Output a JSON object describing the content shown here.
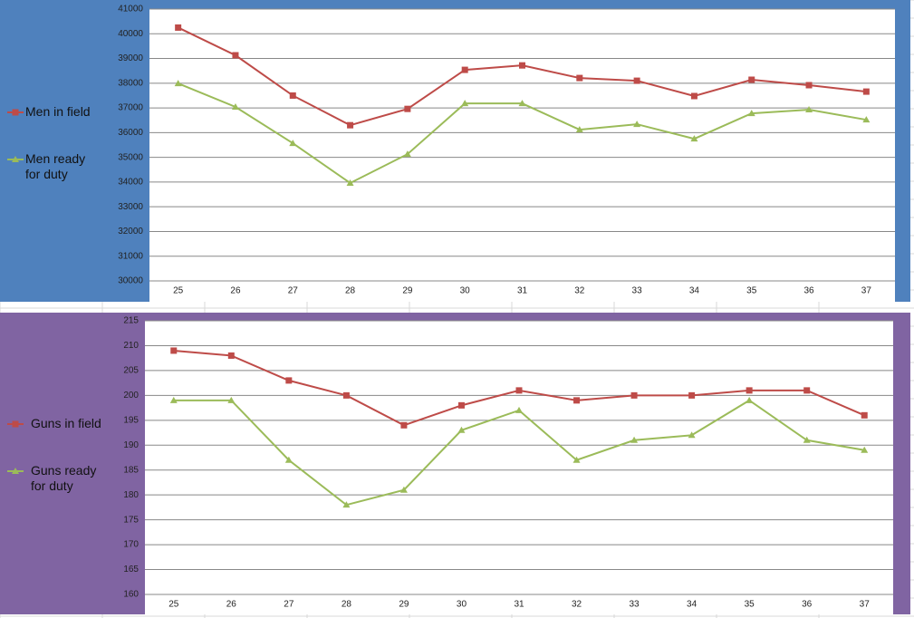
{
  "chart_data": [
    {
      "type": "line",
      "categories": [
        "25",
        "26",
        "27",
        "28",
        "29",
        "30",
        "31",
        "32",
        "33",
        "34",
        "35",
        "36",
        "37"
      ],
      "series": [
        {
          "name": "Men in field",
          "color": "#be4b48",
          "marker": "square",
          "values": [
            40250,
            39130,
            37500,
            36300,
            36960,
            38540,
            38720,
            38210,
            38100,
            37480,
            38140,
            37920,
            37660
          ]
        },
        {
          "name": "Men ready for duty",
          "color": "#9bbb59",
          "marker": "triangle",
          "values": [
            37990,
            37040,
            35570,
            33960,
            35130,
            37180,
            37180,
            36120,
            36340,
            35750,
            36780,
            36930,
            36520
          ]
        }
      ],
      "ylim": [
        30000,
        41000
      ],
      "yticks": [
        30000,
        31000,
        32000,
        33000,
        34000,
        35000,
        36000,
        37000,
        38000,
        39000,
        40000,
        41000
      ],
      "grid": true,
      "legend": "left",
      "background": "#4f81bd"
    },
    {
      "type": "line",
      "categories": [
        "25",
        "26",
        "27",
        "28",
        "29",
        "30",
        "31",
        "32",
        "33",
        "34",
        "35",
        "36",
        "37"
      ],
      "series": [
        {
          "name": "Guns in field",
          "color": "#be4b48",
          "marker": "square",
          "values": [
            209,
            208,
            203,
            200,
            194,
            198,
            201,
            199,
            200,
            200,
            201,
            201,
            196
          ]
        },
        {
          "name": "Guns ready for duty",
          "color": "#9bbb59",
          "marker": "triangle",
          "values": [
            199,
            199,
            187,
            178,
            181,
            193,
            197,
            187,
            191,
            192,
            199,
            191,
            189
          ]
        }
      ],
      "ylim": [
        160,
        215
      ],
      "yticks": [
        160,
        165,
        170,
        175,
        180,
        185,
        190,
        195,
        200,
        205,
        210,
        215
      ],
      "grid": true,
      "legend": "left",
      "background": "#8064a2"
    }
  ]
}
